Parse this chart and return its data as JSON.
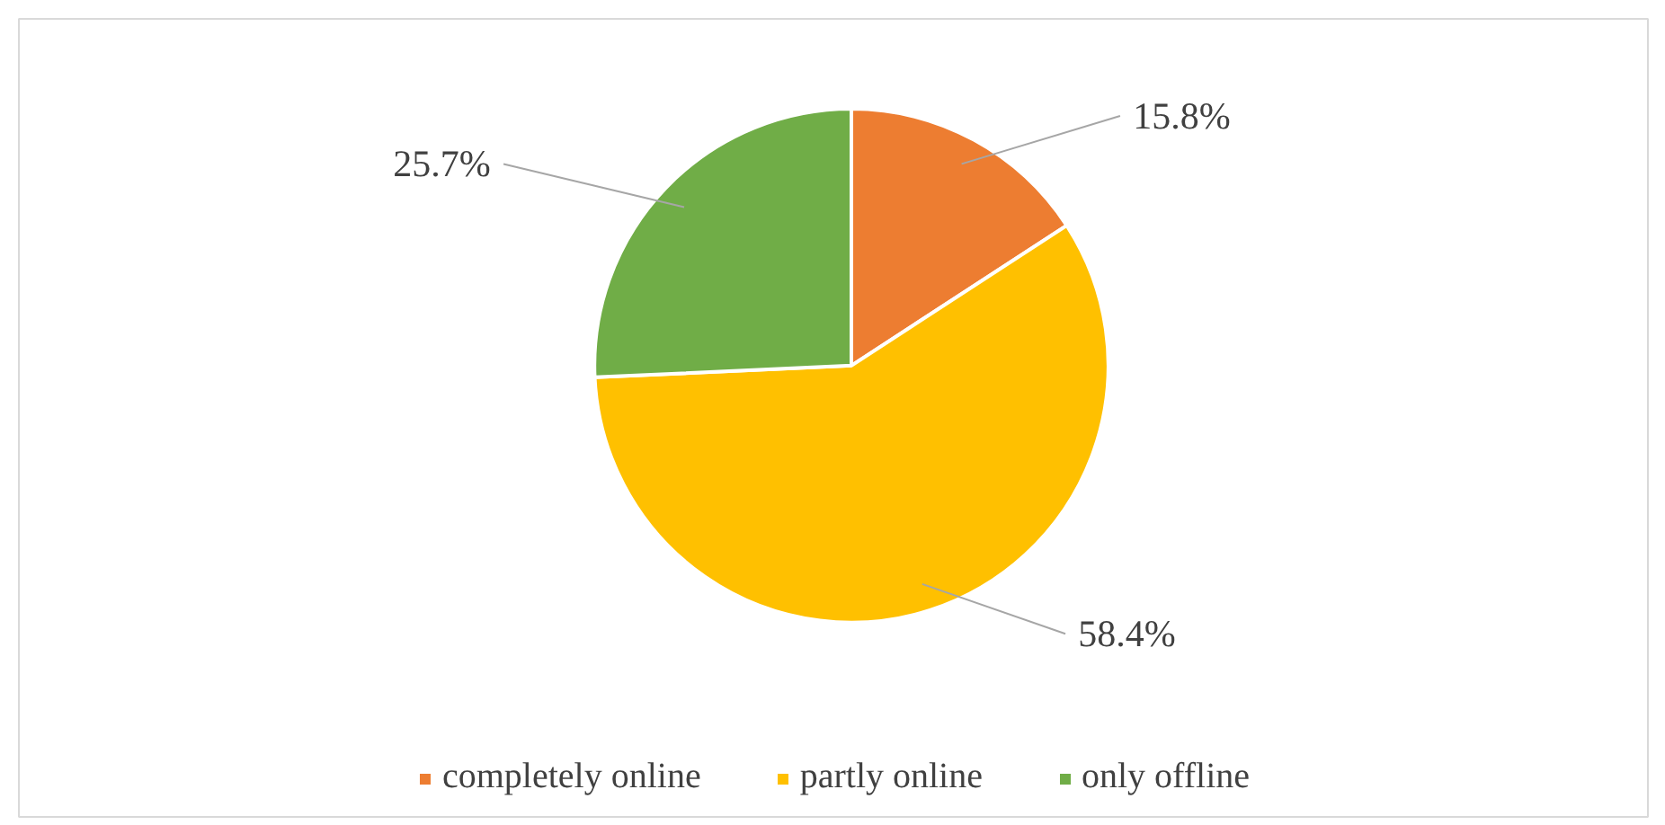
{
  "chart_data": {
    "type": "pie",
    "categories": [
      "completely online",
      "partly online",
      "only offline"
    ],
    "values": [
      15.8,
      58.4,
      25.7
    ],
    "colors": [
      "#ed7d31",
      "#ffc000",
      "#70ad47"
    ],
    "value_labels": [
      "15.8%",
      "58.4%",
      "25.7%"
    ],
    "legend": "bottom"
  }
}
